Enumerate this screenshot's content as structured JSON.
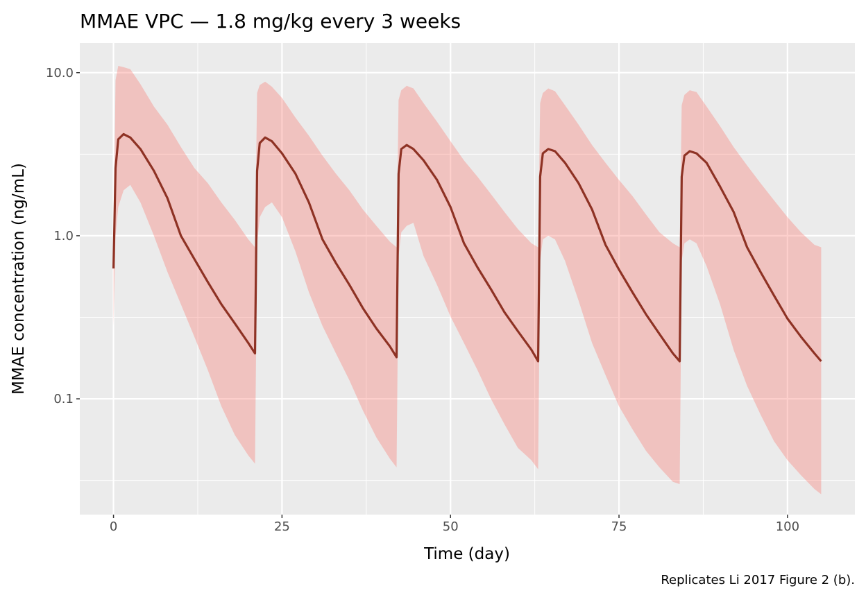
{
  "chart_data": {
    "type": "line",
    "title": "MMAE VPC — 1.8 mg/kg every 3 weeks",
    "xlabel": "Time (day)",
    "ylabel": "MMAE concentration (ng/mL)",
    "caption": "Replicates Li 2017 Figure 2 (b).",
    "x_scale": "linear",
    "y_scale": "log10",
    "xlim": [
      -5,
      110
    ],
    "ylim": [
      0.0195,
      15.2
    ],
    "x_ticks": [
      0,
      25,
      50,
      75,
      100
    ],
    "x_tick_labels": [
      "0",
      "25",
      "50",
      "75",
      "100"
    ],
    "y_ticks": [
      0.1,
      1,
      10
    ],
    "y_tick_labels": [
      "0.1",
      "1.0",
      "10.0"
    ],
    "grid": true,
    "legend": "none",
    "colors": {
      "panel": "#EBEBEB",
      "grid": "#FFFFFF",
      "band": "#F8766D",
      "median": "#8E3224"
    },
    "x": [
      0,
      0.3,
      0.7,
      1.5,
      2.5,
      4,
      6,
      8,
      10,
      12,
      14,
      16,
      18,
      20,
      21,
      21.3,
      21.7,
      22.5,
      23.5,
      25,
      27,
      29,
      31,
      33,
      35,
      37,
      39,
      41,
      42,
      42.3,
      42.7,
      43.5,
      44.5,
      46,
      48,
      50,
      52,
      54,
      56,
      58,
      60,
      62,
      63,
      63.3,
      63.7,
      64.5,
      65.5,
      67,
      69,
      71,
      73,
      75,
      77,
      79,
      81,
      83,
      84,
      84.3,
      84.7,
      85.5,
      86.5,
      88,
      90,
      92,
      94,
      96,
      98,
      100,
      102,
      104,
      105
    ],
    "series": [
      {
        "role": "median",
        "values": [
          0.63,
          2.6,
          3.9,
          4.2,
          4.0,
          3.4,
          2.5,
          1.7,
          1.0,
          0.72,
          0.52,
          0.38,
          0.29,
          0.22,
          0.19,
          2.5,
          3.7,
          4.0,
          3.8,
          3.2,
          2.4,
          1.6,
          0.95,
          0.68,
          0.5,
          0.36,
          0.27,
          0.21,
          0.18,
          2.4,
          3.4,
          3.6,
          3.4,
          2.9,
          2.2,
          1.5,
          0.9,
          0.64,
          0.47,
          0.34,
          0.26,
          0.2,
          0.17,
          2.3,
          3.2,
          3.4,
          3.3,
          2.8,
          2.1,
          1.45,
          0.88,
          0.62,
          0.45,
          0.33,
          0.25,
          0.19,
          0.17,
          2.3,
          3.1,
          3.3,
          3.2,
          2.8,
          2.0,
          1.4,
          0.85,
          0.6,
          0.43,
          0.31,
          0.24,
          0.19,
          0.17
        ]
      },
      {
        "role": "lower",
        "values": [
          0.28,
          1.0,
          1.5,
          1.9,
          2.05,
          1.6,
          1.0,
          0.6,
          0.38,
          0.24,
          0.15,
          0.09,
          0.06,
          0.045,
          0.04,
          0.9,
          1.3,
          1.5,
          1.6,
          1.3,
          0.8,
          0.45,
          0.28,
          0.19,
          0.13,
          0.085,
          0.058,
          0.043,
          0.038,
          0.75,
          1.05,
          1.15,
          1.2,
          0.75,
          0.5,
          0.32,
          0.22,
          0.15,
          0.1,
          0.07,
          0.05,
          0.042,
          0.037,
          0.7,
          0.95,
          1.0,
          0.95,
          0.7,
          0.4,
          0.22,
          0.14,
          0.09,
          0.065,
          0.048,
          0.038,
          0.031,
          0.03,
          0.7,
          0.9,
          0.95,
          0.9,
          0.65,
          0.38,
          0.2,
          0.12,
          0.08,
          0.055,
          0.042,
          0.034,
          0.028,
          0.026
        ]
      },
      {
        "role": "upper",
        "values": [
          1.0,
          9.0,
          11.0,
          10.8,
          10.5,
          8.5,
          6.2,
          4.8,
          3.5,
          2.6,
          2.1,
          1.6,
          1.25,
          0.95,
          0.85,
          7.5,
          8.4,
          8.8,
          8.2,
          7.0,
          5.3,
          4.1,
          3.1,
          2.4,
          1.9,
          1.45,
          1.15,
          0.92,
          0.85,
          6.8,
          7.8,
          8.3,
          8.0,
          6.5,
          5.0,
          3.8,
          2.9,
          2.3,
          1.8,
          1.4,
          1.1,
          0.9,
          0.85,
          6.5,
          7.5,
          8.0,
          7.7,
          6.3,
          4.8,
          3.6,
          2.8,
          2.2,
          1.75,
          1.35,
          1.05,
          0.9,
          0.85,
          6.3,
          7.3,
          7.8,
          7.6,
          6.2,
          4.7,
          3.5,
          2.7,
          2.1,
          1.65,
          1.3,
          1.05,
          0.88,
          0.85
        ]
      }
    ]
  }
}
